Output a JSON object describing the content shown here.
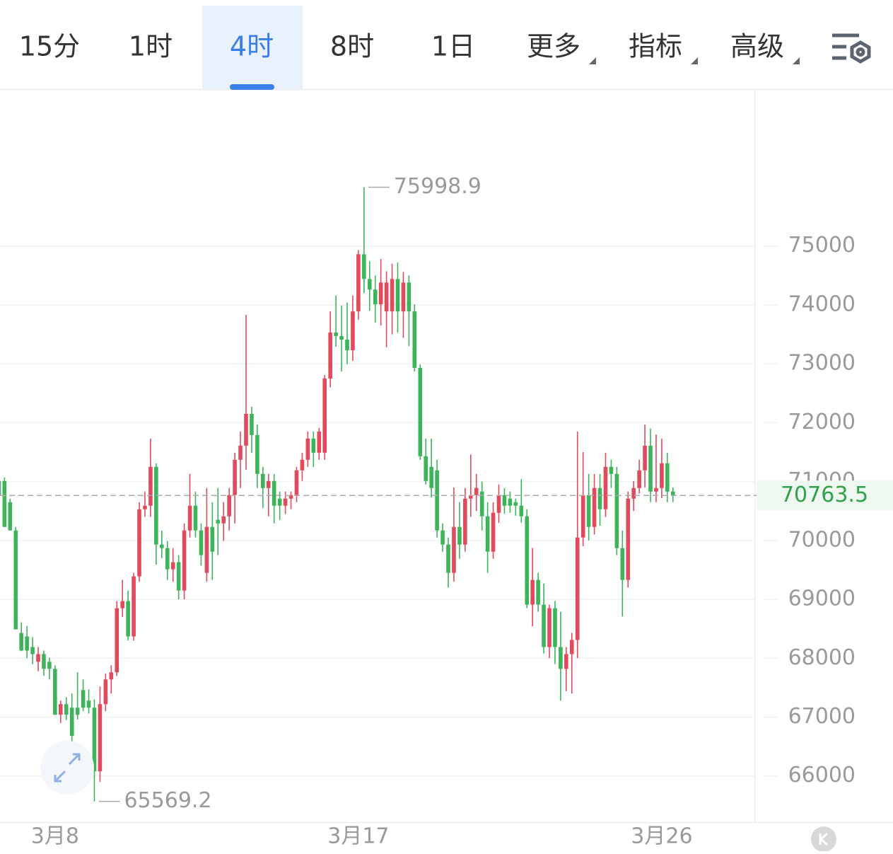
{
  "toolbar": {
    "tabs": [
      "15分",
      "1时",
      "4时",
      "8时",
      "1日"
    ],
    "menus": [
      "更多",
      "指标",
      "高级"
    ],
    "active_tab": "4时"
  },
  "chart_data": {
    "type": "candlestick",
    "up_color": "#e04a5c",
    "down_color": "#3db45a",
    "xlim": [
      0.2,
      134.5
    ],
    "xticks": [
      {
        "value": 10,
        "label": "3月8"
      },
      {
        "value": 64,
        "label": "3月17"
      },
      {
        "value": 118,
        "label": "3月26"
      }
    ],
    "ylim": [
      65240,
      77640
    ],
    "yticks": [
      66000,
      67000,
      68000,
      69000,
      70000,
      71000,
      72000,
      73000,
      74000,
      75000
    ],
    "grid": true,
    "high_index": 65,
    "low_index": 17,
    "last_index": 120,
    "ohlc": [
      [
        71010,
        71130,
        70530,
        70770
      ],
      [
        71010,
        71070,
        70230,
        70230
      ],
      [
        70650,
        70710,
        70170,
        70170
      ],
      [
        70170,
        70230,
        68490,
        68490
      ],
      [
        68430,
        68610,
        68120,
        68130
      ],
      [
        68370,
        68550,
        68000,
        68130
      ],
      [
        68190,
        68360,
        67900,
        68070
      ],
      [
        67940,
        68190,
        67780,
        68070
      ],
      [
        68070,
        68130,
        67700,
        67820
      ],
      [
        67940,
        68010,
        67640,
        67820
      ],
      [
        67820,
        67880,
        67040,
        67040
      ],
      [
        67040,
        67280,
        66900,
        67220
      ],
      [
        67220,
        67340,
        66950,
        67040
      ],
      [
        67160,
        67400,
        66560,
        66680
      ],
      [
        67160,
        67760,
        66960,
        67040
      ],
      [
        67460,
        67640,
        67100,
        67160
      ],
      [
        67280,
        67470,
        67060,
        67160
      ],
      [
        67160,
        67300,
        65569.2,
        66080
      ],
      [
        66080,
        67520,
        65900,
        67220
      ],
      [
        67220,
        67740,
        67100,
        67640
      ],
      [
        67640,
        67880,
        67400,
        67760
      ],
      [
        67760,
        68970,
        67700,
        68850
      ],
      [
        68850,
        69330,
        68700,
        68970
      ],
      [
        68970,
        69150,
        68300,
        68370
      ],
      [
        68370,
        69450,
        68300,
        69390
      ],
      [
        69390,
        70650,
        69300,
        70530
      ],
      [
        70530,
        70830,
        70400,
        70590
      ],
      [
        70590,
        71730,
        70400,
        71250
      ],
      [
        71250,
        71310,
        69590,
        69930
      ],
      [
        69930,
        70170,
        69700,
        69870
      ],
      [
        69870,
        69990,
        69330,
        69510
      ],
      [
        69510,
        69870,
        69300,
        69630
      ],
      [
        69630,
        69750,
        69000,
        69150
      ],
      [
        69150,
        70290,
        69000,
        70170
      ],
      [
        70170,
        71130,
        70050,
        70590
      ],
      [
        70590,
        70830,
        70050,
        70170
      ],
      [
        70170,
        70290,
        69570,
        69750
      ],
      [
        69450,
        70890,
        69300,
        70230
      ],
      [
        70230,
        70650,
        69330,
        69810
      ],
      [
        70350,
        70890,
        69750,
        70290
      ],
      [
        70290,
        70650,
        69990,
        70410
      ],
      [
        70410,
        70890,
        70170,
        70770
      ],
      [
        70770,
        71490,
        70290,
        71370
      ],
      [
        71370,
        71850,
        70890,
        71610
      ],
      [
        71610,
        73830,
        71200,
        72150
      ],
      [
        72150,
        72270,
        71490,
        71790
      ],
      [
        71790,
        71970,
        70890,
        71130
      ],
      [
        71130,
        71250,
        70550,
        70890
      ],
      [
        70890,
        71130,
        70410,
        71010
      ],
      [
        71010,
        71130,
        70290,
        70590
      ],
      [
        70710,
        70830,
        70350,
        70590
      ],
      [
        70590,
        70830,
        70450,
        70710
      ],
      [
        70710,
        70830,
        70530,
        70770
      ],
      [
        70770,
        71250,
        70650,
        71190
      ],
      [
        71190,
        71490,
        71010,
        71370
      ],
      [
        71370,
        71850,
        71250,
        71730
      ],
      [
        71730,
        71850,
        71250,
        71490
      ],
      [
        71490,
        71910,
        71370,
        71850
      ],
      [
        71490,
        72810,
        71370,
        72750
      ],
      [
        72750,
        73890,
        72600,
        73530
      ],
      [
        73530,
        74160,
        73290,
        73470
      ],
      [
        73470,
        73990,
        72870,
        73410
      ],
      [
        73410,
        74040,
        72990,
        73230
      ],
      [
        73230,
        74160,
        73050,
        73890
      ],
      [
        73890,
        74930,
        73750,
        74860
      ],
      [
        74860,
        75998.9,
        74200,
        74440
      ],
      [
        74440,
        74740,
        73900,
        74260
      ],
      [
        74260,
        74500,
        73700,
        74010
      ],
      [
        74010,
        74780,
        73650,
        74380
      ],
      [
        73890,
        74570,
        73280,
        74380
      ],
      [
        73890,
        74700,
        73500,
        74440
      ],
      [
        74440,
        74720,
        73530,
        73890
      ],
      [
        73890,
        74560,
        73440,
        74380
      ],
      [
        74380,
        74500,
        73300,
        73890
      ],
      [
        73890,
        74010,
        72870,
        72930
      ],
      [
        72930,
        72990,
        71370,
        71430
      ],
      [
        71430,
        71730,
        70950,
        71010
      ],
      [
        71250,
        71730,
        70730,
        70890
      ],
      [
        71190,
        71370,
        70050,
        70170
      ],
      [
        70170,
        70290,
        69810,
        69930
      ],
      [
        69930,
        70050,
        69200,
        69450
      ],
      [
        69450,
        70900,
        69300,
        70230
      ],
      [
        70230,
        70650,
        69690,
        69930
      ],
      [
        69930,
        70890,
        69810,
        70710
      ],
      [
        70710,
        71460,
        70400,
        70770
      ],
      [
        70770,
        71130,
        70500,
        70890
      ],
      [
        70830,
        71000,
        70170,
        70410
      ],
      [
        70410,
        70650,
        69450,
        69810
      ],
      [
        69810,
        70650,
        69690,
        70470
      ],
      [
        70470,
        70950,
        70300,
        70770
      ],
      [
        70770,
        70890,
        70450,
        70590
      ],
      [
        70710,
        70830,
        70470,
        70590
      ],
      [
        70650,
        70710,
        70420,
        70590
      ],
      [
        70590,
        71040,
        70300,
        70410
      ],
      [
        70410,
        70530,
        68850,
        68910
      ],
      [
        68910,
        69870,
        68540,
        69330
      ],
      [
        69330,
        69450,
        68790,
        68910
      ],
      [
        68910,
        69270,
        68080,
        68190
      ],
      [
        68190,
        68910,
        68000,
        68850
      ],
      [
        68850,
        68970,
        67900,
        68190
      ],
      [
        68190,
        68790,
        67280,
        67820
      ],
      [
        67820,
        68190,
        67440,
        68070
      ],
      [
        68070,
        68430,
        67400,
        68310
      ],
      [
        68310,
        71850,
        68000,
        70050
      ],
      [
        70050,
        71500,
        69900,
        70770
      ],
      [
        70770,
        71130,
        70000,
        70230
      ],
      [
        70230,
        71130,
        70100,
        70890
      ],
      [
        70890,
        71130,
        70250,
        70530
      ],
      [
        70530,
        71490,
        70400,
        71250
      ],
      [
        71250,
        71370,
        70890,
        71130
      ],
      [
        71130,
        71250,
        69750,
        69870
      ],
      [
        69870,
        70170,
        68710,
        69330
      ],
      [
        69330,
        70830,
        69200,
        70710
      ],
      [
        70710,
        71010,
        70500,
        70890
      ],
      [
        70890,
        71370,
        70800,
        71190
      ],
      [
        71190,
        71970,
        70900,
        71610
      ],
      [
        71610,
        71900,
        70650,
        70830
      ],
      [
        70830,
        71800,
        70650,
        70890
      ],
      [
        70890,
        71730,
        70720,
        71310
      ],
      [
        71310,
        71490,
        70650,
        70830
      ],
      [
        70830,
        70900,
        70650,
        70763.5
      ]
    ]
  }
}
